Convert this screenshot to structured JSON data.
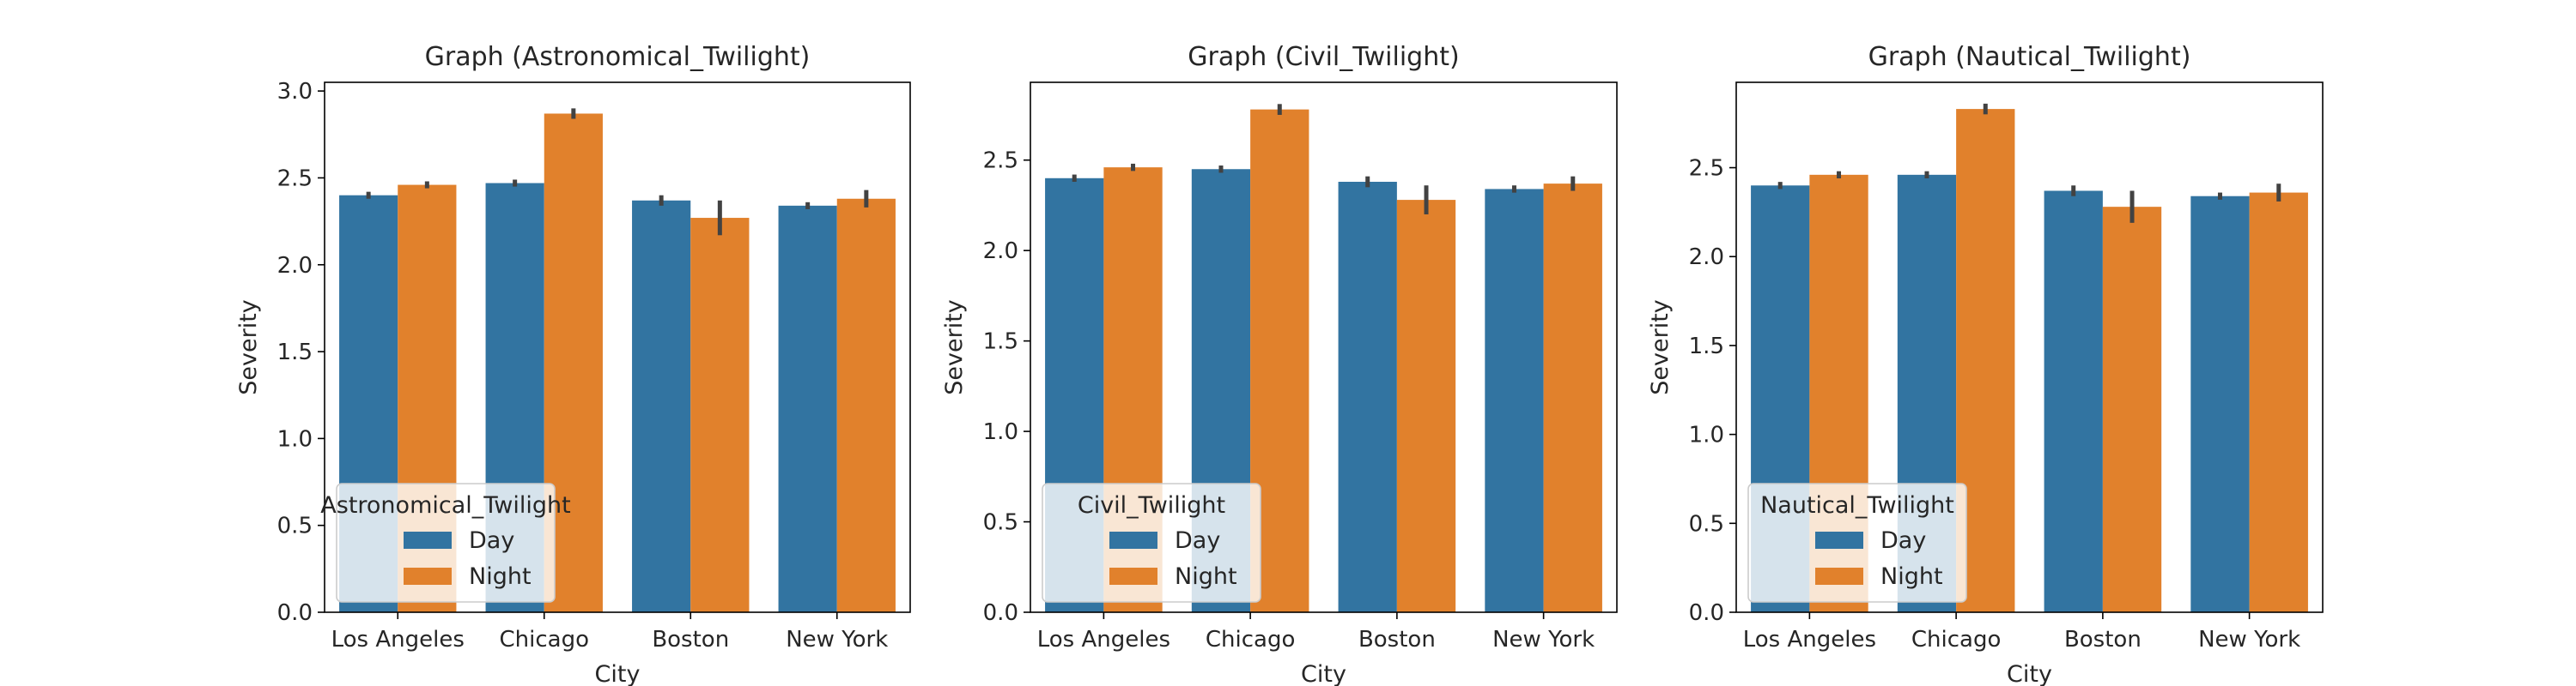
{
  "chart_data": [
    {
      "type": "bar",
      "title": "Graph (Astronomical_Twilight)",
      "xlabel": "City",
      "ylabel": "Severity",
      "categories": [
        "Los Angeles",
        "Chicago",
        "Boston",
        "New York"
      ],
      "ylim": [
        0,
        3.05
      ],
      "yticks": [
        "0.0",
        "0.5",
        "1.0",
        "1.5",
        "2.0",
        "2.5",
        "3.0"
      ],
      "legend": {
        "title": "Astronomical_Twilight",
        "placement": "lower-left"
      },
      "series": [
        {
          "name": "Day",
          "color": "#3274a1",
          "values": [
            2.4,
            2.47,
            2.37,
            2.34
          ],
          "err": [
            0.02,
            0.02,
            0.03,
            0.02
          ]
        },
        {
          "name": "Night",
          "color": "#e1812c",
          "values": [
            2.46,
            2.87,
            2.27,
            2.38
          ],
          "err": [
            0.02,
            0.03,
            0.1,
            0.05
          ]
        }
      ]
    },
    {
      "type": "bar",
      "title": "Graph (Civil_Twilight)",
      "xlabel": "City",
      "ylabel": "Severity",
      "categories": [
        "Los Angeles",
        "Chicago",
        "Boston",
        "New York"
      ],
      "ylim": [
        0,
        2.93
      ],
      "yticks": [
        "0.0",
        "0.5",
        "1.0",
        "1.5",
        "2.0",
        "2.5"
      ],
      "legend": {
        "title": "Civil_Twilight",
        "placement": "lower-left"
      },
      "series": [
        {
          "name": "Day",
          "color": "#3274a1",
          "values": [
            2.4,
            2.45,
            2.38,
            2.34
          ],
          "err": [
            0.02,
            0.02,
            0.03,
            0.02
          ]
        },
        {
          "name": "Night",
          "color": "#e1812c",
          "values": [
            2.46,
            2.78,
            2.28,
            2.37
          ],
          "err": [
            0.02,
            0.03,
            0.08,
            0.04
          ]
        }
      ]
    },
    {
      "type": "bar",
      "title": "Graph (Nautical_Twilight)",
      "xlabel": "City",
      "ylabel": "Severity",
      "categories": [
        "Los Angeles",
        "Chicago",
        "Boston",
        "New York"
      ],
      "ylim": [
        0,
        2.98
      ],
      "yticks": [
        "0.0",
        "0.5",
        "1.0",
        "1.5",
        "2.0",
        "2.5"
      ],
      "legend": {
        "title": "Nautical_Twilight",
        "placement": "lower-left"
      },
      "series": [
        {
          "name": "Day",
          "color": "#3274a1",
          "values": [
            2.4,
            2.46,
            2.37,
            2.34
          ],
          "err": [
            0.02,
            0.02,
            0.03,
            0.02
          ]
        },
        {
          "name": "Night",
          "color": "#e1812c",
          "values": [
            2.46,
            2.83,
            2.28,
            2.36
          ],
          "err": [
            0.02,
            0.03,
            0.09,
            0.05
          ]
        }
      ]
    }
  ]
}
